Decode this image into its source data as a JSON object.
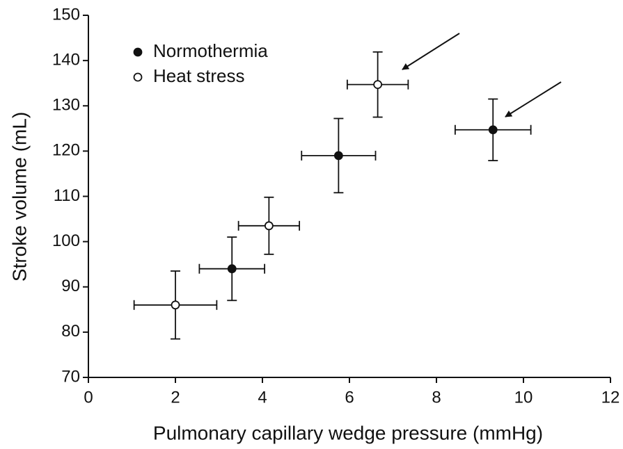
{
  "chart_data": {
    "type": "scatter",
    "xlabel": "Pulmonary capillary wedge pressure (mmHg)",
    "ylabel": "Stroke volume (mL)",
    "xlim": [
      0,
      12
    ],
    "xticks": [
      0,
      2,
      4,
      6,
      8,
      10,
      12
    ],
    "ylim": [
      70,
      150
    ],
    "yticks": [
      70,
      80,
      90,
      100,
      110,
      120,
      130,
      140,
      150
    ],
    "legend": "upper left",
    "series": [
      {
        "name": "Normothermia",
        "color": "#111111",
        "filled": true,
        "x": [
          3.3,
          5.75,
          9.3
        ],
        "values": [
          94,
          119,
          124.7
        ],
        "xerr": [
          0.75,
          0.85,
          0.87
        ],
        "yerr": [
          7,
          8.2,
          6.8
        ]
      },
      {
        "name": "Heat stress",
        "color": "#111111",
        "filled": false,
        "x": [
          2.0,
          4.15,
          6.65
        ],
        "values": [
          86,
          103.5,
          134.7
        ],
        "xerr": [
          0.95,
          0.7,
          0.7
        ],
        "yerr": [
          7.5,
          6.3,
          7.2
        ]
      }
    ]
  }
}
